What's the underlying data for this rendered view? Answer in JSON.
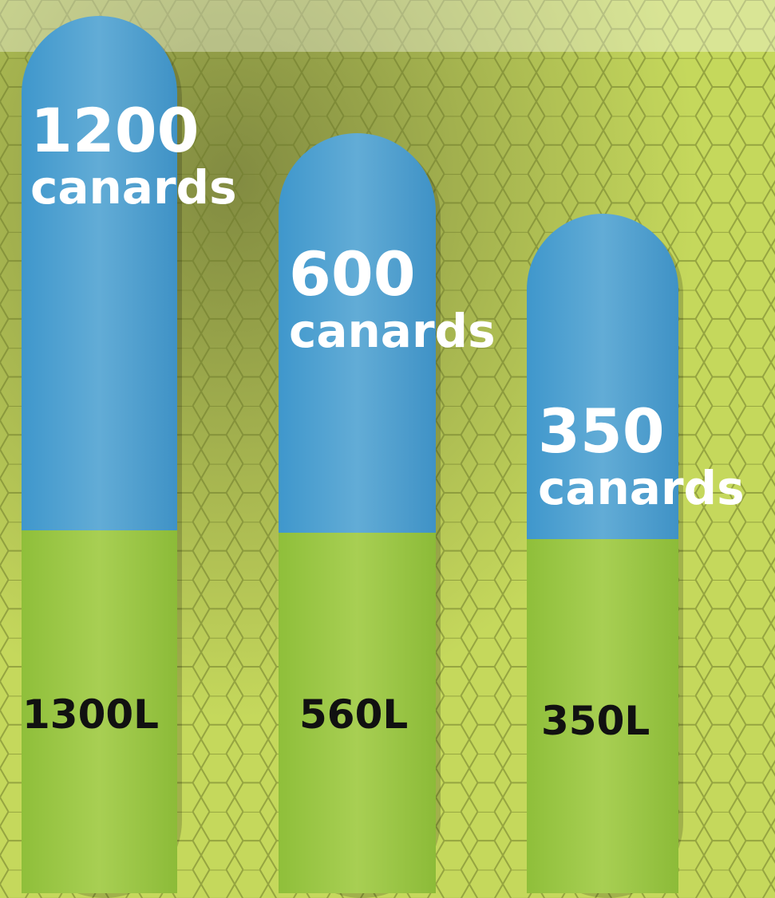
{
  "pillars": [
    {
      "count": "1200",
      "unit": "canards",
      "volume": "1300L"
    },
    {
      "count": "600",
      "unit": "canards",
      "volume": "560L"
    },
    {
      "count": "350",
      "unit": "canards",
      "volume": "350L"
    }
  ]
}
